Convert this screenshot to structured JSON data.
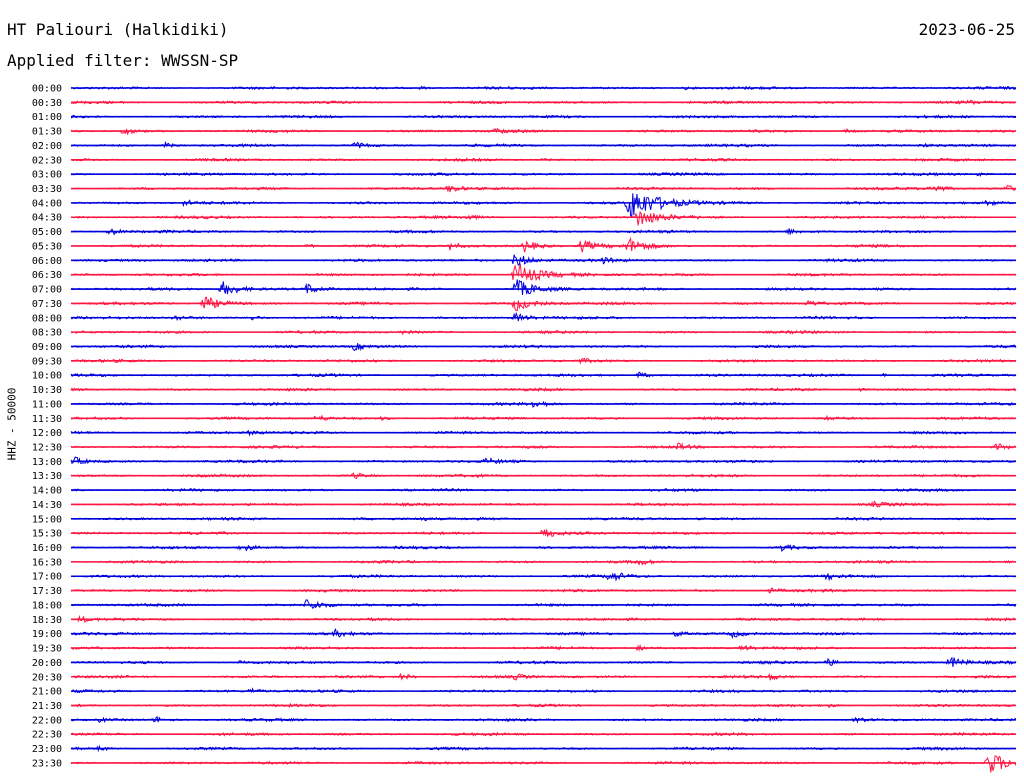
{
  "header": {
    "station": "HT Paliouri (Halkidiki)",
    "date": "2023-06-25",
    "filter_text": "Applied filter: WWSSN-SP"
  },
  "axis": {
    "channel_label": "HHZ - 50000"
  },
  "chart_data": {
    "type": "line",
    "xlabel": "",
    "ylabel": "HHZ - 50000",
    "title": "HT Paliouri (Halkidiki)",
    "subtitle": "Applied filter: WWSSN-SP",
    "colors": [
      "#0000dd",
      "#ff1744"
    ],
    "trace_minutes": 30,
    "rows": [
      {
        "time": "00:00",
        "events": [
          {
            "t": 0.37,
            "amp": 0.3
          },
          {
            "t": 0.65,
            "amp": 0.25
          }
        ]
      },
      {
        "time": "00:30",
        "events": [
          {
            "t": 0.95,
            "amp": 0.3
          }
        ]
      },
      {
        "time": "01:00",
        "events": []
      },
      {
        "time": "01:30",
        "events": [
          {
            "t": 0.056,
            "amp": 0.7
          },
          {
            "t": 0.45,
            "amp": 0.5
          },
          {
            "t": 0.82,
            "amp": 0.4
          }
        ]
      },
      {
        "time": "02:00",
        "events": [
          {
            "t": 0.1,
            "amp": 0.5
          },
          {
            "t": 0.3,
            "amp": 0.6
          },
          {
            "t": 0.9,
            "amp": 0.3
          }
        ]
      },
      {
        "time": "02:30",
        "events": [
          {
            "t": 0.5,
            "amp": 0.2
          }
        ]
      },
      {
        "time": "03:00",
        "events": [
          {
            "t": 0.96,
            "amp": 0.3
          }
        ]
      },
      {
        "time": "03:30",
        "events": [
          {
            "t": 0.4,
            "amp": 0.8
          },
          {
            "t": 0.91,
            "amp": 0.9
          },
          {
            "t": 0.99,
            "amp": 0.6
          }
        ]
      },
      {
        "time": "04:00",
        "events": [
          {
            "t": 0.12,
            "amp": 0.6
          },
          {
            "t": 0.59,
            "amp": 3.5
          },
          {
            "t": 0.97,
            "amp": 0.6
          }
        ]
      },
      {
        "time": "04:30",
        "events": [
          {
            "t": 0.42,
            "amp": 0.4
          },
          {
            "t": 0.6,
            "amp": 2.0
          }
        ]
      },
      {
        "time": "05:00",
        "events": [
          {
            "t": 0.04,
            "amp": 0.8
          },
          {
            "t": 0.76,
            "amp": 0.5
          }
        ]
      },
      {
        "time": "05:30",
        "events": [
          {
            "t": 0.25,
            "amp": 0.4
          },
          {
            "t": 0.4,
            "amp": 0.8
          },
          {
            "t": 0.48,
            "amp": 1.2
          },
          {
            "t": 0.54,
            "amp": 1.2
          },
          {
            "t": 0.59,
            "amp": 1.5
          }
        ]
      },
      {
        "time": "06:00",
        "events": [
          {
            "t": 0.47,
            "amp": 1.5
          },
          {
            "t": 0.56,
            "amp": 0.6
          }
        ]
      },
      {
        "time": "06:30",
        "events": [
          {
            "t": 0.47,
            "amp": 2.5
          }
        ]
      },
      {
        "time": "07:00",
        "events": [
          {
            "t": 0.16,
            "amp": 1.6
          },
          {
            "t": 0.25,
            "amp": 1.0
          },
          {
            "t": 0.47,
            "amp": 2.0
          }
        ]
      },
      {
        "time": "07:30",
        "events": [
          {
            "t": 0.14,
            "amp": 1.6
          },
          {
            "t": 0.47,
            "amp": 1.5
          },
          {
            "t": 0.78,
            "amp": 0.6
          }
        ]
      },
      {
        "time": "08:00",
        "events": [
          {
            "t": 0.11,
            "amp": 0.5
          },
          {
            "t": 0.19,
            "amp": 0.6
          },
          {
            "t": 0.47,
            "amp": 1.0
          }
        ]
      },
      {
        "time": "08:30",
        "events": [
          {
            "t": 0.35,
            "amp": 0.3
          }
        ]
      },
      {
        "time": "09:00",
        "events": [
          {
            "t": 0.3,
            "amp": 0.7
          }
        ]
      },
      {
        "time": "09:30",
        "events": [
          {
            "t": 0.54,
            "amp": 0.4
          }
        ]
      },
      {
        "time": "10:00",
        "events": [
          {
            "t": 0.6,
            "amp": 0.7
          },
          {
            "t": 0.86,
            "amp": 0.3
          }
        ]
      },
      {
        "time": "10:30",
        "events": [
          {
            "t": 0.83,
            "amp": 0.5
          }
        ]
      },
      {
        "time": "11:00",
        "events": [
          {
            "t": 0.49,
            "amp": 0.8
          }
        ]
      },
      {
        "time": "11:30",
        "events": [
          {
            "t": 0.26,
            "amp": 0.6
          },
          {
            "t": 0.33,
            "amp": 0.4
          },
          {
            "t": 0.8,
            "amp": 0.5
          }
        ]
      },
      {
        "time": "12:00",
        "events": [
          {
            "t": 0.19,
            "amp": 0.5
          }
        ]
      },
      {
        "time": "12:30",
        "events": [
          {
            "t": 0.64,
            "amp": 0.7
          },
          {
            "t": 0.98,
            "amp": 0.6
          }
        ]
      },
      {
        "time": "13:00",
        "events": [
          {
            "t": 0.003,
            "amp": 0.9
          },
          {
            "t": 0.44,
            "amp": 0.5
          }
        ]
      },
      {
        "time": "13:30",
        "events": [
          {
            "t": 0.3,
            "amp": 0.6
          }
        ]
      },
      {
        "time": "14:00",
        "events": []
      },
      {
        "time": "14:30",
        "events": [
          {
            "t": 0.85,
            "amp": 0.4
          }
        ]
      },
      {
        "time": "15:00",
        "events": [
          {
            "t": 0.37,
            "amp": 0.4
          }
        ]
      },
      {
        "time": "15:30",
        "events": [
          {
            "t": 0.5,
            "amp": 1.1
          }
        ]
      },
      {
        "time": "16:00",
        "events": [
          {
            "t": 0.18,
            "amp": 0.9
          },
          {
            "t": 0.75,
            "amp": 0.7
          }
        ]
      },
      {
        "time": "16:30",
        "events": [
          {
            "t": 0.6,
            "amp": 0.5
          }
        ]
      },
      {
        "time": "17:00",
        "events": [
          {
            "t": 0.57,
            "amp": 1.0
          },
          {
            "t": 0.8,
            "amp": 0.5
          }
        ]
      },
      {
        "time": "17:30",
        "events": [
          {
            "t": 0.74,
            "amp": 0.5
          }
        ]
      },
      {
        "time": "18:00",
        "events": [
          {
            "t": 0.25,
            "amp": 1.2
          }
        ]
      },
      {
        "time": "18:30",
        "events": [
          {
            "t": 0.01,
            "amp": 0.6
          }
        ]
      },
      {
        "time": "19:00",
        "events": [
          {
            "t": 0.28,
            "amp": 0.6
          },
          {
            "t": 0.64,
            "amp": 0.6
          },
          {
            "t": 0.7,
            "amp": 0.7
          }
        ]
      },
      {
        "time": "19:30",
        "events": [
          {
            "t": 0.6,
            "amp": 0.5
          },
          {
            "t": 0.71,
            "amp": 0.6
          }
        ]
      },
      {
        "time": "20:00",
        "events": [
          {
            "t": 0.18,
            "amp": 0.4
          },
          {
            "t": 0.8,
            "amp": 0.8
          },
          {
            "t": 0.93,
            "amp": 1.2
          }
        ]
      },
      {
        "time": "20:30",
        "events": [
          {
            "t": 0.35,
            "amp": 0.7
          },
          {
            "t": 0.47,
            "amp": 0.5
          },
          {
            "t": 0.74,
            "amp": 0.5
          }
        ]
      },
      {
        "time": "21:00",
        "events": [
          {
            "t": 0.19,
            "amp": 0.5
          }
        ]
      },
      {
        "time": "21:30",
        "events": [
          {
            "t": 0.8,
            "amp": 0.4
          }
        ]
      },
      {
        "time": "22:00",
        "events": [
          {
            "t": 0.03,
            "amp": 0.4
          },
          {
            "t": 0.09,
            "amp": 0.6
          },
          {
            "t": 0.83,
            "amp": 0.6
          }
        ]
      },
      {
        "time": "22:30",
        "events": []
      },
      {
        "time": "23:00",
        "events": [
          {
            "t": 0.03,
            "amp": 0.4
          }
        ]
      },
      {
        "time": "23:30",
        "events": [
          {
            "t": 0.97,
            "amp": 2.4
          }
        ]
      }
    ]
  }
}
